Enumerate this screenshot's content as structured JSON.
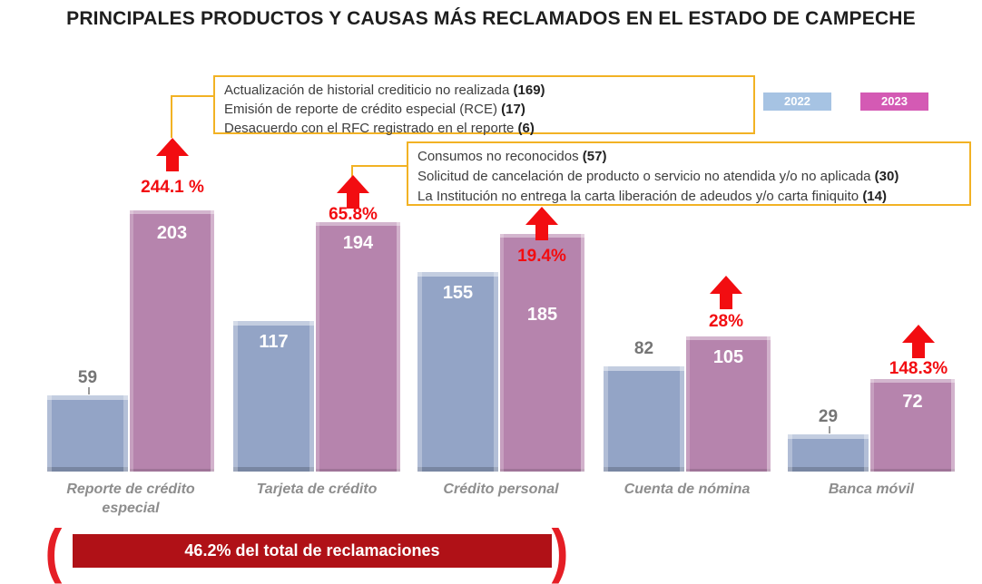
{
  "title": "PRINCIPALES PRODUCTOS Y CAUSAS MÁS RECLAMADOS EN EL ESTADO DE CAMPECHE",
  "legend": {
    "items": [
      {
        "label": "2022",
        "color": "#a6c3e3"
      },
      {
        "label": "2023",
        "color": "#d45ab4"
      }
    ]
  },
  "callouts": [
    {
      "causes": [
        {
          "text": "Actualización de historial crediticio no realizada",
          "count": "169"
        },
        {
          "text": "Emisión de reporte de crédito especial (RCE)",
          "count": "17"
        },
        {
          "text": "Desacuerdo con el RFC registrado en el reporte",
          "count": "6"
        }
      ]
    },
    {
      "causes": [
        {
          "text": "Consumos no reconocidos",
          "count": "57"
        },
        {
          "text": "Solicitud de cancelación de producto o servicio no atendida y/o no aplicada",
          "count": "30"
        },
        {
          "text": "La Institución no entrega la carta liberación de adeudos y/o carta finiquito",
          "count": "14"
        }
      ]
    }
  ],
  "chart_data": {
    "type": "bar",
    "categories": [
      "Reporte de crédito especial",
      "Tarjeta de crédito",
      "Crédito personal",
      "Cuenta de nómina",
      "Banca móvil"
    ],
    "series": [
      {
        "name": "2022",
        "values": [
          59,
          117,
          155,
          82,
          29
        ],
        "color": "#93a4c6"
      },
      {
        "name": "2023",
        "values": [
          203,
          194,
          185,
          105,
          72
        ],
        "color": "#b684ad"
      }
    ],
    "pct_change_labels": [
      "244.1 %",
      "65.8%",
      "19.4%",
      "28%",
      "148.3%"
    ],
    "arrow_color": "#f20d11",
    "ylim": [
      0,
      203
    ],
    "grid": false,
    "legend_position": "top-right"
  },
  "footer": {
    "bracket_left": "(",
    "banner_text": "46.2% del total de reclamaciones",
    "bracket_right": ")"
  }
}
